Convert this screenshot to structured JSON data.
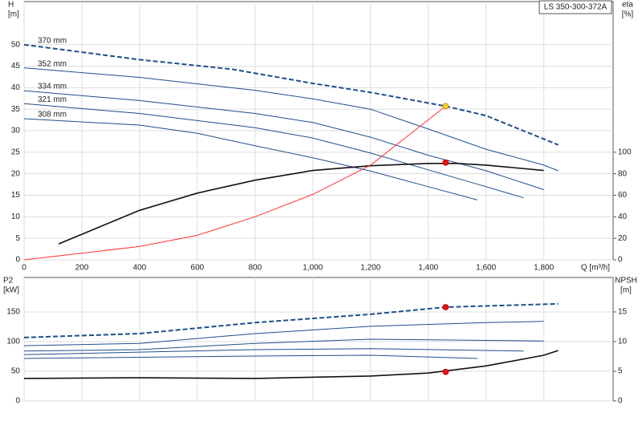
{
  "chart_data": [
    {
      "type": "line",
      "title": "LS 350-300-372A",
      "ylabel": [
        "H",
        "[m]"
      ],
      "y2label": [
        "eta",
        "[%]"
      ],
      "xlabel": "Q [m³/h]",
      "xlim": [
        0,
        2040
      ],
      "xticks": [
        0,
        200,
        400,
        600,
        800,
        {
          "value": 1000,
          "label": "1,000"
        },
        {
          "value": 1200,
          "label": "1,200"
        },
        {
          "value": 1400,
          "label": "1,400"
        },
        {
          "value": 1600,
          "label": "1,600"
        },
        {
          "value": 1800,
          "label": "1,800"
        }
      ],
      "ylim": [
        0,
        60
      ],
      "yticks": [
        0,
        5,
        10,
        15,
        20,
        25,
        30,
        35,
        40,
        45,
        50
      ],
      "y2lim": [
        0,
        240
      ],
      "y2ticks": [
        0,
        20,
        40,
        60,
        80,
        100
      ],
      "grid": true,
      "series": [
        {
          "name": "370 mm",
          "color": "#1f4e8c",
          "style": "dashed",
          "x": [
            0,
            400,
            720,
            1000,
            1200,
            1460,
            1600,
            1850
          ],
          "values": [
            50,
            46.5,
            44.3,
            41,
            38.9,
            35.7,
            33.5,
            26.7
          ]
        },
        {
          "name": "352 mm",
          "color": "#1f4e8c",
          "x": [
            0,
            400,
            800,
            1000,
            1200,
            1400,
            1600,
            1800,
            1850
          ],
          "values": [
            44.6,
            42.4,
            39.4,
            37.4,
            35,
            30.4,
            25.7,
            22,
            20.7
          ]
        },
        {
          "name": "334 mm",
          "color": "#1f4e8c",
          "x": [
            0,
            400,
            800,
            1000,
            1200,
            1400,
            1600,
            1800
          ],
          "values": [
            39.3,
            37,
            34,
            31.9,
            28.5,
            24.3,
            20.7,
            16.3
          ]
        },
        {
          "name": "321 mm",
          "color": "#1f4e8c",
          "x": [
            0,
            400,
            800,
            1000,
            1200,
            1400,
            1600,
            1730
          ],
          "values": [
            36.3,
            34,
            30.7,
            28.3,
            24.8,
            20.9,
            17,
            14.4
          ]
        },
        {
          "name": "308 mm",
          "color": "#1f4e8c",
          "x": [
            0,
            400,
            600,
            800,
            1000,
            1200,
            1400,
            1570
          ],
          "values": [
            32.8,
            31.3,
            29.4,
            26.5,
            23.7,
            20.6,
            17,
            13.9
          ]
        },
        {
          "color": "#111111",
          "axis": "y2",
          "x": [
            120,
            400,
            600,
            800,
            1000,
            1200,
            1400,
            1500,
            1600,
            1800
          ],
          "values": [
            14.8,
            46,
            62,
            74,
            83,
            87.4,
            89.6,
            89.6,
            88,
            83
          ]
        },
        {
          "color": "#ff3030",
          "x": [
            0,
            400,
            600,
            800,
            1000,
            1200,
            1460
          ],
          "values": [
            0,
            3.1,
            5.7,
            10,
            15.2,
            22,
            35.7
          ]
        }
      ],
      "markers": [
        {
          "x": 1460,
          "y": 35.7,
          "color": "#ffd21f"
        },
        {
          "x": 1460,
          "y": 90.4,
          "axis": "y2",
          "color": "#ee1111"
        }
      ]
    },
    {
      "type": "line",
      "ylabel": [
        "P2",
        "[kW]"
      ],
      "y2label": [
        "NPSH",
        "[m]"
      ],
      "xlim": [
        0,
        2040
      ],
      "ylim": [
        0,
        208
      ],
      "yticks": [
        0,
        50,
        100,
        150
      ],
      "y2lim": [
        0,
        20.8
      ],
      "y2ticks": [
        0,
        5,
        10,
        15
      ],
      "grid": true,
      "series": [
        {
          "color": "#1f4e8c",
          "style": "dashed",
          "x": [
            0,
            400,
            800,
            1200,
            1460,
            1850
          ],
          "values": [
            106.8,
            113.5,
            132,
            146,
            158,
            163.5
          ]
        },
        {
          "color": "#1f4e8c",
          "x": [
            0,
            400,
            800,
            1200,
            1600,
            1800
          ],
          "values": [
            93,
            97,
            113.5,
            125.7,
            132,
            134
          ]
        },
        {
          "color": "#1f4e8c",
          "x": [
            0,
            400,
            800,
            1200,
            1800
          ],
          "values": [
            84,
            86.5,
            97,
            104,
            101
          ]
        },
        {
          "color": "#1f4e8c",
          "x": [
            0,
            800,
            1200,
            1730
          ],
          "values": [
            78,
            86.5,
            88,
            84
          ]
        },
        {
          "color": "#1f4e8c",
          "x": [
            0,
            800,
            1200,
            1570
          ],
          "values": [
            71.6,
            75.7,
            77,
            71.6
          ]
        },
        {
          "color": "#111111",
          "axis": "y2",
          "x": [
            0,
            400,
            800,
            1200,
            1400,
            1600,
            1800,
            1850
          ],
          "values": [
            3.8,
            3.9,
            3.8,
            4.2,
            4.7,
            5.9,
            7.7,
            8.5
          ]
        }
      ],
      "markers": [
        {
          "x": 1460,
          "y": 158,
          "color": "#ee1111"
        },
        {
          "x": 1460,
          "y": 4.9,
          "axis": "y2",
          "color": "#ee1111"
        }
      ]
    }
  ]
}
